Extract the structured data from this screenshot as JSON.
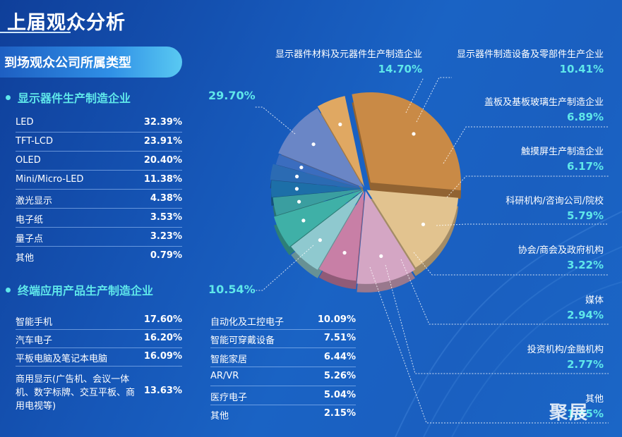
{
  "page": {
    "title": "上届观众分析",
    "section_title": "到场观众公司所属类型"
  },
  "categories": [
    {
      "name": "显示器件生产制造企业",
      "percent": "29.70%",
      "items": [
        {
          "label": "LED",
          "value": "32.39%"
        },
        {
          "label": "TFT-LCD",
          "value": "23.91%"
        },
        {
          "label": "OLED",
          "value": "20.40%"
        },
        {
          "label": "Mini/Micro-LED",
          "value": "11.38%"
        },
        {
          "label": "激光显示",
          "value": "4.38%"
        },
        {
          "label": "电子纸",
          "value": "3.53%"
        },
        {
          "label": "量子点",
          "value": "3.23%"
        },
        {
          "label": "其他",
          "value": "0.79%"
        }
      ]
    },
    {
      "name": "终端应用产品生产制造企业",
      "percent": "10.54%",
      "items_left": [
        {
          "label": "智能手机",
          "value": "17.60%"
        },
        {
          "label": "汽车电子",
          "value": "16.20%"
        },
        {
          "label": "平板电脑及笔记本电脑",
          "value": "16.09%"
        },
        {
          "label": "商用显示(广告机、会议一体机、数字标牌、交互平板、商用电视等)",
          "value": "13.63%"
        }
      ],
      "items_right": [
        {
          "label": "自动化及工控电子",
          "value": "10.09%"
        },
        {
          "label": "智能可穿戴设备",
          "value": "7.51%"
        },
        {
          "label": "智能家居",
          "value": "6.44%"
        },
        {
          "label": "AR/VR",
          "value": "5.26%"
        },
        {
          "label": "医疗电子",
          "value": "5.04%"
        },
        {
          "label": "其他",
          "value": "2.15%"
        }
      ]
    }
  ],
  "chart_data": {
    "type": "pie",
    "title": "",
    "slices": [
      {
        "name": "显示器件生产制造企业",
        "value": 29.7,
        "color": "#c98a46"
      },
      {
        "name": "显示器件材料及元器件生产制造企业",
        "value": 14.7,
        "color": "#e2c38f"
      },
      {
        "name": "显示器件制造设备及零部件生产企业",
        "value": 10.41,
        "color": "#d4a6c4"
      },
      {
        "name": "盖板及基板玻璃生产制造企业",
        "value": 6.89,
        "color": "#c87fa6"
      },
      {
        "name": "触摸屏生产制造企业",
        "value": 6.17,
        "color": "#8fc9cf"
      },
      {
        "name": "科研机构/咨询公司/院校",
        "value": 5.79,
        "color": "#3fb0a7"
      },
      {
        "name": "协会/商会及政府机构",
        "value": 3.22,
        "color": "#3a9ea0"
      },
      {
        "name": "媒体",
        "value": 2.94,
        "color": "#1d6fa8"
      },
      {
        "name": "投资机构/金融机构",
        "value": 2.77,
        "color": "#2b6bb3"
      },
      {
        "name": "其他",
        "value": 1.85,
        "color": "#3b6dbf"
      },
      {
        "name": "终端应用产品生产制造企业",
        "value": 10.54,
        "color": "#6a86c6"
      },
      {
        "name": "其他（终端）",
        "value": 5.02,
        "color": "#e0a862"
      }
    ],
    "legend": "right"
  },
  "pie_labels": [
    {
      "name": "显示器件材料及元器件生产制造企业",
      "value": "14.70%"
    },
    {
      "name": "显示器件制造设备及零部件生产企业",
      "value": "10.41%"
    },
    {
      "name": "盖板及基板玻璃生产制造企业",
      "value": "6.89%"
    },
    {
      "name": "触摸屏生产制造企业",
      "value": "6.17%"
    },
    {
      "name": "科研机构/咨询公司/院校",
      "value": "5.79%"
    },
    {
      "name": "协会/商会及政府机构",
      "value": "3.22%"
    },
    {
      "name": "媒体",
      "value": "2.94%"
    },
    {
      "name": "投资机构/金融机构",
      "value": "2.77%"
    },
    {
      "name": "其他",
      "value": "1.85%"
    }
  ],
  "watermark": "聚展"
}
